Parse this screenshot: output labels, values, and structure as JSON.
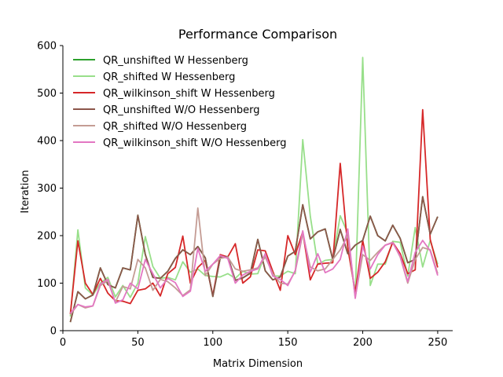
{
  "chart_data": {
    "type": "line",
    "title": "Performance Comparison",
    "xlabel": "Matrix Dimension",
    "ylabel": "Iteration",
    "xlim": [
      0,
      260
    ],
    "ylim": [
      0,
      600
    ],
    "xticks": [
      0,
      50,
      100,
      150,
      200,
      250
    ],
    "yticks": [
      0,
      100,
      200,
      300,
      400,
      500,
      600
    ],
    "grid": false,
    "legend_position": "upper-left",
    "x": [
      5,
      10,
      15,
      20,
      25,
      30,
      35,
      40,
      45,
      50,
      55,
      60,
      65,
      70,
      75,
      80,
      85,
      90,
      95,
      100,
      105,
      110,
      115,
      120,
      125,
      130,
      135,
      140,
      145,
      150,
      155,
      160,
      165,
      170,
      175,
      180,
      185,
      190,
      195,
      200,
      205,
      210,
      215,
      220,
      225,
      230,
      235,
      240,
      245,
      250
    ],
    "series": [
      {
        "name": "QR_unshifted W Hessenberg",
        "color": "#2ca02c",
        "values": [
          18,
          82,
          67,
          75,
          132,
          97,
          90,
          132,
          128,
          243,
          160,
          112,
          110,
          125,
          152,
          170,
          160,
          177,
          153,
          72,
          154,
          156,
          106,
          111,
          121,
          192,
          126,
          107,
          113,
          157,
          167,
          265,
          193,
          208,
          214,
          150,
          213,
          162,
          180,
          190,
          241,
          200,
          189,
          222,
          194,
          143,
          150,
          282,
          203,
          240
        ]
      },
      {
        "name": "QR_shifted W Hessenberg",
        "color": "#98df8a",
        "values": [
          30,
          212,
          90,
          75,
          100,
          112,
          71,
          95,
          70,
          100,
          198,
          135,
          110,
          112,
          107,
          145,
          123,
          130,
          116,
          114,
          113,
          120,
          110,
          125,
          119,
          120,
          162,
          115,
          115,
          125,
          120,
          402,
          241,
          140,
          148,
          150,
          242,
          205,
          72,
          575,
          95,
          140,
          140,
          188,
          186,
          115,
          217,
          134,
          190,
          140
        ]
      },
      {
        "name": "QR_wilkinson_shift W Hessenberg",
        "color": "#d62728",
        "values": [
          35,
          189,
          100,
          76,
          110,
          79,
          63,
          62,
          57,
          85,
          88,
          100,
          73,
          120,
          133,
          199,
          100,
          133,
          148,
          74,
          160,
          155,
          183,
          100,
          113,
          170,
          168,
          125,
          85,
          200,
          160,
          208,
          107,
          140,
          142,
          143,
          352,
          174,
          81,
          190,
          110,
          123,
          145,
          186,
          162,
          120,
          128,
          465,
          192,
          133
        ]
      },
      {
        "name": "QR_unshifted W/O Hessenberg",
        "color": "#8c564b",
        "values": [
          18,
          82,
          67,
          75,
          132,
          97,
          90,
          132,
          128,
          243,
          160,
          112,
          110,
          125,
          152,
          170,
          160,
          177,
          153,
          72,
          154,
          156,
          106,
          111,
          121,
          192,
          126,
          107,
          113,
          157,
          167,
          265,
          193,
          208,
          214,
          150,
          213,
          162,
          180,
          190,
          241,
          200,
          189,
          222,
          194,
          143,
          150,
          282,
          203,
          240
        ]
      },
      {
        "name": "QR_shifted W/O Hessenberg",
        "color": "#c49c94",
        "values": [
          34,
          55,
          48,
          52,
          95,
          105,
          60,
          93,
          88,
          150,
          132,
          85,
          108,
          103,
          90,
          74,
          86,
          258,
          116,
          140,
          152,
          155,
          130,
          125,
          128,
          132,
          155,
          120,
          100,
          98,
          125,
          204,
          134,
          126,
          130,
          150,
          170,
          200,
          70,
          160,
          148,
          165,
          180,
          186,
          155,
          100,
          150,
          175,
          170,
          120
        ]
      },
      {
        "name": "QR_wilkinson_shift W/O Hessenberg",
        "color": "#e377c2",
        "values": [
          37,
          55,
          50,
          52,
          98,
          108,
          58,
          65,
          100,
          88,
          150,
          120,
          90,
          110,
          101,
          72,
          83,
          173,
          125,
          140,
          158,
          152,
          100,
          117,
          125,
          130,
          162,
          115,
          108,
          95,
          127,
          210,
          123,
          162,
          122,
          130,
          150,
          214,
          68,
          178,
          130,
          160,
          180,
          185,
          157,
          103,
          165,
          190,
          168,
          116
        ]
      }
    ]
  }
}
